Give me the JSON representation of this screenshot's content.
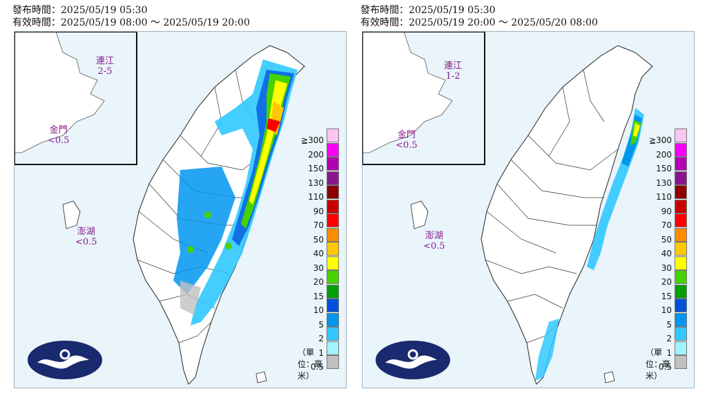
{
  "panels": [
    {
      "issued": "發布時間：2025/05/19 05:30",
      "valid": "有效時間：2025/05/19 08:00 ～ 2025/05/19 20:00",
      "matsu_name": "連江",
      "matsu_value": "2-5",
      "kinmen_name": "金門",
      "kinmen_value": "<0.5",
      "penghu_name": "澎湖",
      "penghu_value": "<0.5"
    },
    {
      "issued": "發布時間：2025/05/19 05:30",
      "valid": "有效時間：2025/05/19 20:00 ～ 2025/05/20 08:00",
      "matsu_name": "連江",
      "matsu_value": "1-2",
      "kinmen_name": "金門",
      "kinmen_value": "<0.5",
      "penghu_name": "澎湖",
      "penghu_value": "<0.5"
    }
  ],
  "legend": {
    "levels": [
      "≧300",
      "200",
      "150",
      "130",
      "110",
      "90",
      "70",
      "50",
      "40",
      "30",
      "20",
      "15",
      "10",
      "5",
      "2",
      "1",
      "0.5"
    ],
    "colors": [
      "#fbc4f3",
      "#f700f7",
      "#b400b4",
      "#8a168e",
      "#8c0000",
      "#c80000",
      "#ff0000",
      "#ff8c00",
      "#ffc800",
      "#ffff00",
      "#46d200",
      "#00a000",
      "#0050dc",
      "#0096f0",
      "#30c8ff",
      "#a0f4ff",
      "#c0c0c0"
    ],
    "unit": "（單位：毫米）"
  },
  "layers": {
    "sea": "#e9f4fb",
    "land": "#ffffff",
    "border": "#222222"
  }
}
